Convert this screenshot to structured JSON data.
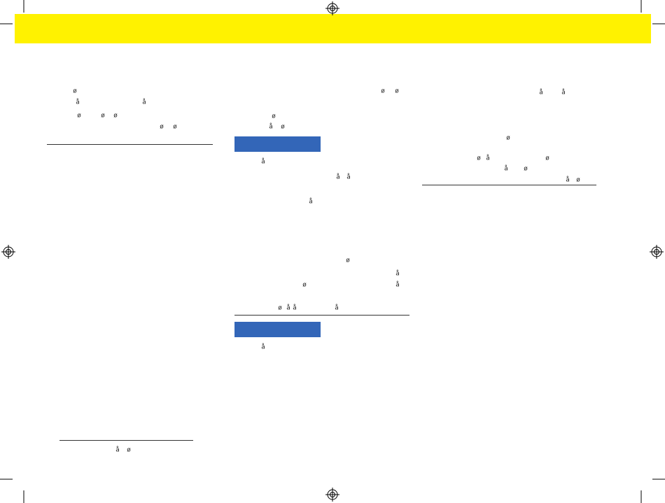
{
  "columns": [
    {
      "fragments": [
        "ø",
        "å",
        "å",
        "ø",
        "ø",
        "ø",
        "ø",
        "ø",
        "å",
        "ø"
      ]
    },
    {
      "fragments": [
        "ø",
        "ø",
        "ø",
        "å",
        "ø",
        "å",
        "å",
        "å",
        "å",
        "ø",
        "å",
        "ø",
        "å",
        "ø",
        "å",
        "å",
        "å",
        "å"
      ]
    },
    {
      "fragments": [
        "å",
        "å",
        "ø",
        "ø",
        "å",
        "ø",
        "å",
        "ø",
        "å",
        "ø"
      ]
    }
  ]
}
